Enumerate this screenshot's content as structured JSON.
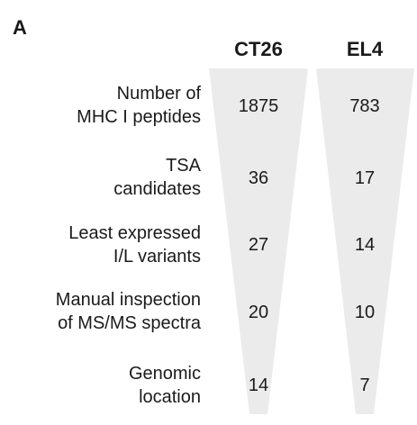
{
  "panel_label": "A",
  "columns": [
    "CT26",
    "EL4"
  ],
  "colors": {
    "funnel_fill": "#ebebeb",
    "text": "#1a1a1a"
  },
  "rows": [
    {
      "label_lines": [
        "Number of",
        "MHC I peptides"
      ],
      "values": [
        "1875",
        "783"
      ]
    },
    {
      "label_lines": [
        "TSA",
        "candidates"
      ],
      "values": [
        "36",
        "17"
      ]
    },
    {
      "label_lines": [
        "Least expressed",
        "I/L variants"
      ],
      "values": [
        "27",
        "14"
      ]
    },
    {
      "label_lines": [
        "Manual inspection",
        "of MS/MS spectra"
      ],
      "values": [
        "20",
        "10"
      ]
    },
    {
      "label_lines": [
        "Genomic",
        "location"
      ],
      "values": [
        "14",
        "7"
      ]
    }
  ]
}
